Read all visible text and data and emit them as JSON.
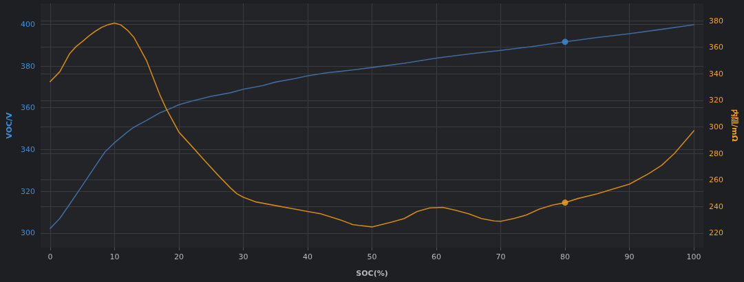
{
  "chart_data": {
    "type": "line",
    "xlabel": "SOC(%)",
    "ylabel": "VOC/V",
    "y2label": "内阻/mΩ",
    "xlim": [
      -1.5,
      101.5
    ],
    "xticks": [
      0,
      10,
      20,
      30,
      40,
      50,
      60,
      70,
      80,
      90,
      100
    ],
    "ylim": [
      293,
      410
    ],
    "yticks": [
      300,
      320,
      340,
      360,
      380,
      400
    ],
    "y2lim": [
      209,
      393
    ],
    "y2ticks": [
      220,
      240,
      260,
      280,
      300,
      320,
      340,
      360,
      380
    ],
    "grid": true,
    "marker": "none",
    "line_style": "solid",
    "series": [
      {
        "color": "#3e6b9c",
        "x": [
          0,
          1.5,
          3,
          5,
          7,
          8.5,
          10,
          12,
          13,
          15,
          17,
          19,
          20,
          22,
          25,
          28,
          30,
          33,
          35,
          38,
          40,
          43,
          45,
          48,
          50,
          55,
          60,
          65,
          70,
          75,
          80,
          85,
          90,
          95,
          100
        ],
        "values": [
          302.2,
          307,
          313.7,
          322.8,
          332,
          338.8,
          343.3,
          348.4,
          350.7,
          354,
          357.5,
          360.1,
          361.5,
          363.2,
          365.5,
          367.2,
          368.9,
          370.6,
          372.3,
          374,
          375.3,
          376.8,
          377.4,
          378.5,
          379.3,
          381.3,
          383.8,
          385.8,
          387.5,
          389.4,
          391.6,
          393.7,
          395.5,
          397.6,
          399.8
        ]
      },
      {
        "axis": "y2",
        "color": "#cf8a12",
        "x": [
          0,
          1.5,
          3,
          4,
          5,
          6,
          7,
          8,
          9,
          10,
          11,
          12,
          13,
          14,
          15,
          16,
          17,
          18,
          19,
          20,
          22,
          24,
          26,
          28,
          29,
          30,
          32,
          35,
          38,
          40,
          42,
          45,
          47,
          48,
          50,
          53,
          55,
          57,
          59,
          61,
          63,
          65,
          67,
          69,
          70,
          72,
          74,
          76,
          78,
          80,
          82,
          85,
          88,
          90,
          93,
          95,
          97,
          100
        ],
        "values": [
          334.1,
          341.6,
          355,
          360.4,
          364.3,
          368.4,
          372,
          375,
          377,
          378.2,
          376.8,
          372.9,
          367.5,
          358.6,
          349.6,
          337,
          324.6,
          313.9,
          305,
          296,
          285.4,
          274.6,
          264,
          254,
          249.6,
          247,
          243.4,
          240.7,
          238,
          236.2,
          234.5,
          230,
          226.4,
          225.7,
          224.6,
          228.2,
          230.9,
          236.2,
          238.9,
          239.3,
          237.1,
          234.5,
          230.9,
          229.1,
          228.8,
          230.9,
          233.6,
          238,
          241,
          242.9,
          246,
          249.6,
          254,
          256.8,
          264.8,
          271,
          280,
          297
        ]
      },
      {
        "type": "scatter",
        "marker": "circle",
        "color": "#3b8fda",
        "x": [
          80
        ],
        "values": [
          391.6
        ]
      },
      {
        "type": "scatter",
        "marker": "circle",
        "axis": "y2",
        "color": "#f5a21f",
        "x": [
          80
        ],
        "values": [
          242.9
        ]
      }
    ]
  }
}
